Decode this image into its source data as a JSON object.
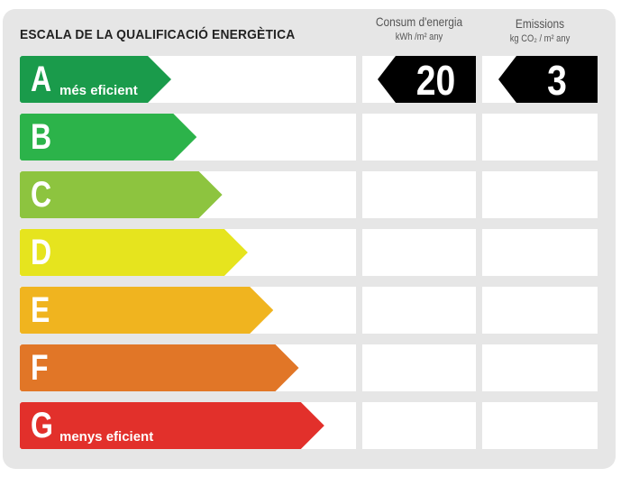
{
  "title": "ESCALA DE LA QUALIFICACIÓ ENERGÈTICA",
  "columns": {
    "consumption": {
      "label": "Consum d'energia",
      "unit": "kWh /m² any"
    },
    "emissions": {
      "label": "Emissions",
      "unit": "kg CO₂ / m² any"
    }
  },
  "ratings": [
    {
      "letter": "A",
      "desc": "més eficient",
      "color": "#1a9b4b"
    },
    {
      "letter": "B",
      "desc": "",
      "color": "#2cb34a"
    },
    {
      "letter": "C",
      "desc": "",
      "color": "#8dc43f"
    },
    {
      "letter": "D",
      "desc": "",
      "color": "#e6e41e"
    },
    {
      "letter": "E",
      "desc": "",
      "color": "#f0b41f"
    },
    {
      "letter": "F",
      "desc": "",
      "color": "#e17627"
    },
    {
      "letter": "G",
      "desc": "menys eficient",
      "color": "#e2302b"
    }
  ],
  "result": {
    "rating": "A",
    "consumption": "20",
    "emissions": "3",
    "marker_color": "#000000"
  }
}
